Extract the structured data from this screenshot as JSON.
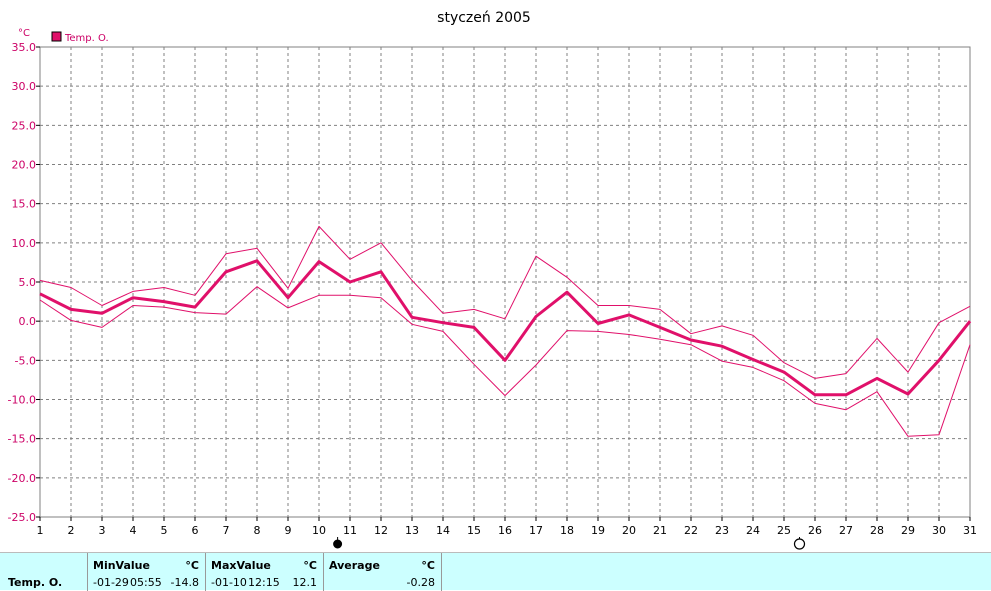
{
  "chart_data": {
    "type": "line",
    "title": "styczeń 2005",
    "yunit": "°C",
    "ylim": [
      -25,
      35
    ],
    "yticks": [
      "35.0",
      "30.0",
      "25.0",
      "20.0",
      "15.0",
      "10.0",
      "5.0",
      "0.0",
      "-5.0",
      "-10.0",
      "-15.0",
      "-20.0",
      "-25.0"
    ],
    "x": [
      1,
      2,
      3,
      4,
      5,
      6,
      7,
      8,
      9,
      10,
      11,
      12,
      13,
      14,
      15,
      16,
      17,
      18,
      19,
      20,
      21,
      22,
      23,
      24,
      25,
      26,
      27,
      28,
      29,
      30,
      31
    ],
    "legend": "Temp. O.",
    "grid": true,
    "series": [
      {
        "role": "average",
        "color": "#e0106a",
        "values": [
          3.5,
          1.5,
          1.0,
          3.0,
          2.5,
          1.8,
          6.3,
          7.7,
          3.0,
          7.6,
          5.0,
          6.3,
          0.5,
          -0.2,
          -0.8,
          -5.0,
          0.6,
          3.7,
          -0.3,
          0.8,
          -0.8,
          -2.4,
          -3.2,
          -4.9,
          -6.5,
          -9.4,
          -9.4,
          -7.3,
          -9.3,
          -5.0,
          0.0
        ]
      },
      {
        "role": "max",
        "color": "#e0106a",
        "values": [
          5.2,
          4.3,
          2.0,
          3.8,
          4.3,
          3.3,
          8.6,
          9.3,
          4.2,
          12.1,
          7.9,
          10.0,
          5.2,
          1.0,
          1.5,
          0.3,
          8.3,
          5.6,
          2.0,
          2.0,
          1.5,
          -1.6,
          -0.6,
          -1.8,
          -5.3,
          -7.3,
          -6.7,
          -2.2,
          -6.5,
          -0.2,
          1.9
        ]
      },
      {
        "role": "min",
        "color": "#e0106a",
        "values": [
          2.7,
          0.1,
          -0.8,
          2.0,
          1.8,
          1.1,
          0.9,
          4.4,
          1.7,
          3.3,
          3.3,
          3.0,
          -0.4,
          -1.3,
          -5.5,
          -9.5,
          -5.6,
          -1.2,
          -1.3,
          -1.7,
          -2.3,
          -3.0,
          -5.1,
          -5.9,
          -7.6,
          -10.5,
          -11.3,
          -9.0,
          -14.7,
          -14.5,
          -3.0
        ]
      }
    ]
  },
  "moon_phases": [
    {
      "name": "full-moon-icon",
      "day": 10.6
    },
    {
      "name": "new-moon-icon",
      "day": 25.5
    }
  ],
  "footer": {
    "row_label": "Temp. O.",
    "min": {
      "header": "MinValue",
      "unit": "°C",
      "date": "-01-29",
      "time": "05:55",
      "value": "-14.8"
    },
    "max": {
      "header": "MaxValue",
      "unit": "°C",
      "date": "-01-10",
      "time": "12:15",
      "value": "12.1"
    },
    "avg": {
      "header": "Average",
      "unit": "°C",
      "value": "-0.28"
    }
  }
}
